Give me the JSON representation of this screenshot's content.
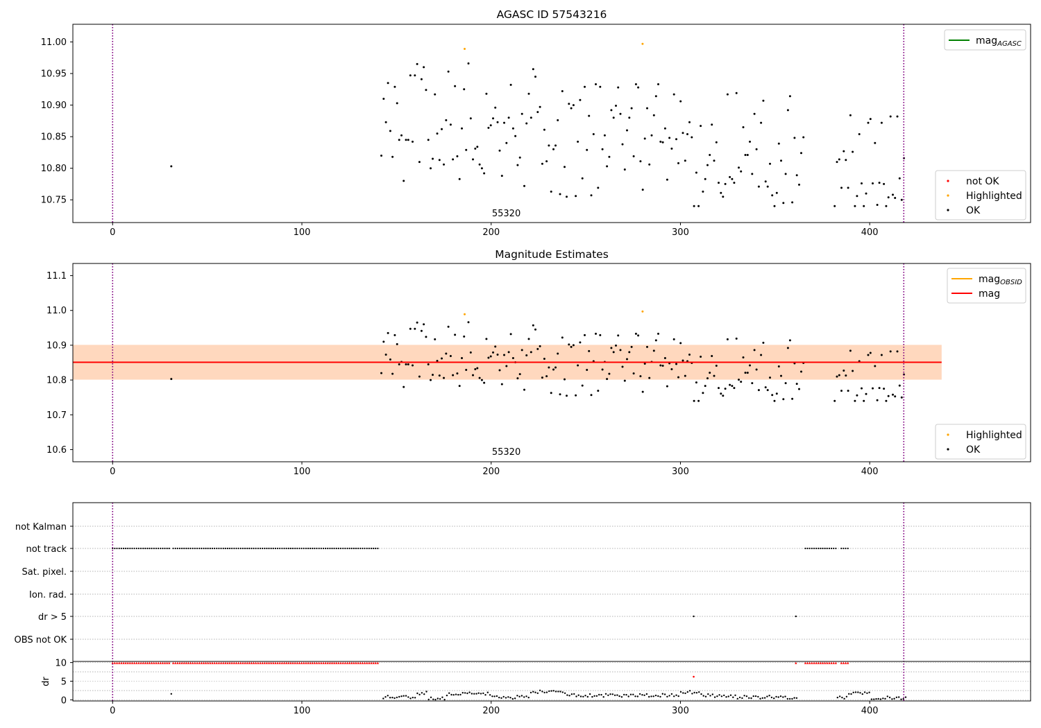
{
  "chart_data": [
    {
      "type": "scatter",
      "title": "AGASC ID 57543216",
      "xlim": [
        -21,
        485
      ],
      "ylim": [
        10.714,
        11.028
      ],
      "xticks": [
        "0",
        "100",
        "200",
        "300",
        "400"
      ],
      "xtick_values": [
        0,
        100,
        200,
        300,
        400
      ],
      "yticks": [
        "10.75",
        "10.80",
        "10.85",
        "10.90",
        "10.95",
        "11.00"
      ],
      "ytick_values": [
        10.75,
        10.8,
        10.85,
        10.9,
        10.95,
        11.0
      ],
      "vlines": [
        0,
        418
      ],
      "annotation": "55320",
      "annotation_x": 208,
      "legend_lines": [
        {
          "label": "mag",
          "sub": "AGASC",
          "color": "#008000"
        }
      ],
      "legend_points": [
        {
          "label": "not OK",
          "color": "#ff0000"
        },
        {
          "label": "Highlighted",
          "color": "#ffa500"
        },
        {
          "label": "OK",
          "color": "#000000"
        }
      ],
      "series": [
        {
          "name": "Highlighted",
          "color": "#ffa500",
          "x": [
            186,
            280
          ],
          "y": [
            10.989,
            10.997
          ]
        }
      ]
    },
    {
      "type": "scatter",
      "title": "Magnitude Estimates",
      "xlim": [
        -21,
        485
      ],
      "ylim": [
        10.565,
        11.135
      ],
      "xticks": [
        "0",
        "100",
        "200",
        "300",
        "400"
      ],
      "xtick_values": [
        0,
        100,
        200,
        300,
        400
      ],
      "yticks": [
        "10.6",
        "10.7",
        "10.8",
        "10.9",
        "11.0",
        "11.1"
      ],
      "ytick_values": [
        10.6,
        10.7,
        10.8,
        10.9,
        11.0,
        11.1
      ],
      "vlines": [
        0,
        418
      ],
      "annotation": "55320",
      "annotation_x": 208,
      "mag": 10.851,
      "mag_band": [
        10.801,
        10.901
      ],
      "band_x": [
        -21,
        438
      ],
      "legend_lines": [
        {
          "label": "mag",
          "sub": "OBSID",
          "color": "#ffa500"
        },
        {
          "label": "mag",
          "sub": "",
          "color": "#ff0000"
        }
      ],
      "legend_points": [
        {
          "label": "Highlighted",
          "color": "#ffa500"
        },
        {
          "label": "OK",
          "color": "#000000"
        }
      ],
      "series": [
        {
          "name": "Highlighted",
          "color": "#ffa500",
          "x": [
            186,
            280
          ],
          "y": [
            10.989,
            10.997
          ]
        }
      ]
    },
    {
      "type": "scatter",
      "xlim": [
        -21,
        485
      ],
      "categories": [
        "not Kalman",
        "not track",
        "Sat. pixel.",
        "Ion. rad.",
        "dr > 5",
        "OBS not OK"
      ],
      "flags": {
        "not_track_ranges": [
          [
            0,
            30
          ],
          [
            32,
            141
          ],
          [
            366,
            383
          ],
          [
            385,
            389
          ]
        ],
        "dr_gt_5_points": [
          307,
          361
        ]
      },
      "vlines": [
        0,
        418
      ]
    },
    {
      "type": "scatter",
      "xlim": [
        -21,
        485
      ],
      "ylim": [
        -0.3,
        10.3
      ],
      "ylabel": "dr",
      "xticks": [
        "0",
        "100",
        "200",
        "300",
        "400"
      ],
      "xtick_values": [
        0,
        100,
        200,
        300,
        400
      ],
      "yticks": [
        "0",
        "5",
        "10"
      ],
      "ytick_values": [
        0,
        5,
        10
      ],
      "vlines": [
        0,
        418
      ],
      "clipped_ranges": [
        [
          0,
          30
        ],
        [
          32,
          141
        ],
        [
          366,
          383
        ],
        [
          385,
          389
        ]
      ],
      "clipped_points": [
        361
      ],
      "red_points": [
        {
          "x": 307,
          "y": 6.2
        }
      ]
    }
  ]
}
